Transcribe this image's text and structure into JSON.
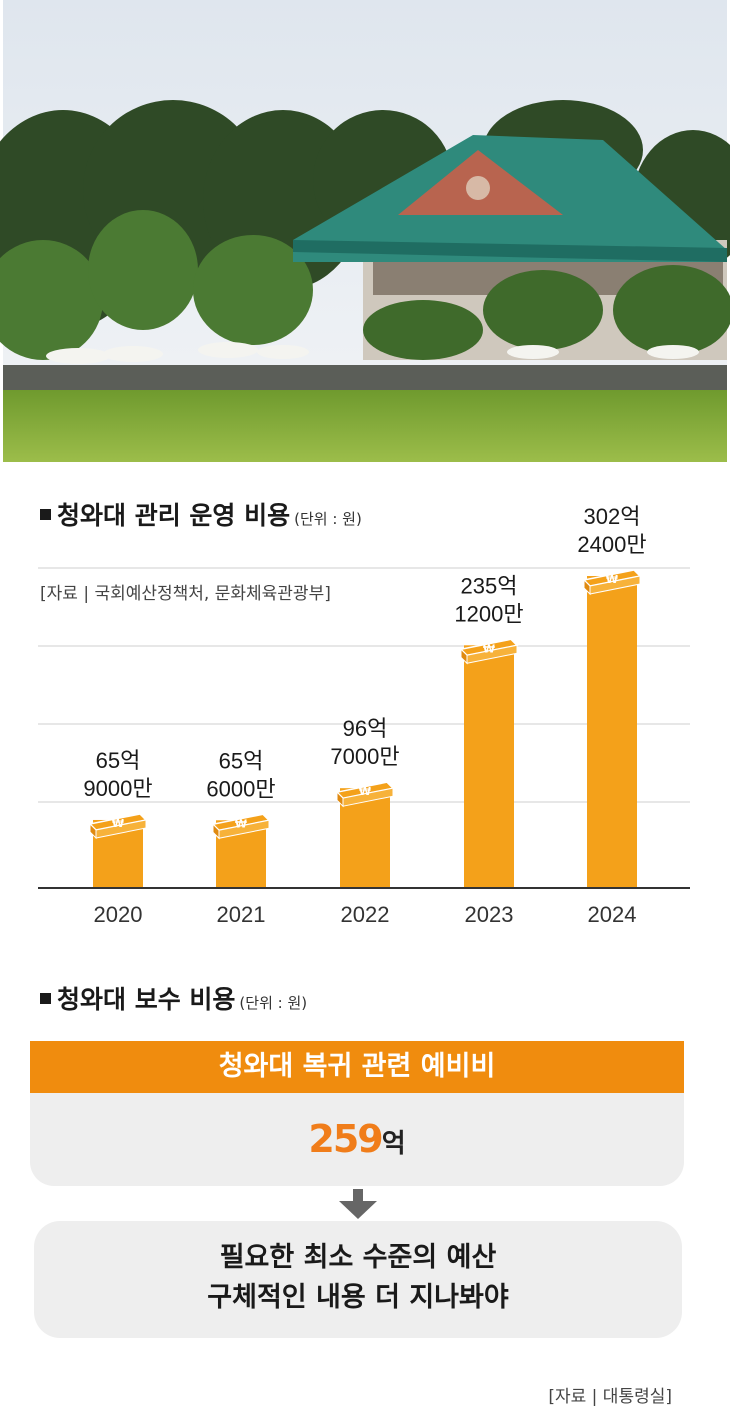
{
  "photo": {
    "description_icon": "blue-house-photo"
  },
  "chart1": {
    "title": "청와대 관리 운영 비용",
    "unit": "(단위 : 원)",
    "source": "[자료 | 국회예산정책처, 문화체육관광부]"
  },
  "chart_data": {
    "type": "bar",
    "title": "청와대 관리 운영 비용",
    "categories": [
      "2020",
      "2021",
      "2022",
      "2023",
      "2024"
    ],
    "values": [
      6590000000,
      6560000000,
      9670000000,
      23512000000,
      30224000000
    ],
    "value_labels": [
      [
        "65억",
        "9000만"
      ],
      [
        "65억",
        "6000만"
      ],
      [
        "96억",
        "7000만"
      ],
      [
        "235억",
        "1200만"
      ],
      [
        "302억",
        "2400만"
      ]
    ],
    "ylim": [
      0,
      31000000000
    ],
    "grid": true,
    "bar_color": "#f4a11a"
  },
  "chart2": {
    "title": "청와대 보수 비용",
    "unit": "(단위 : 원)",
    "banner": "청와대 복귀 관련 예비비",
    "amount_value": "259",
    "amount_unit": "억",
    "note_line1": "필요한 최소 수준의 예산",
    "note_line2": "구체적인 내용 더 지나봐야",
    "source": "[자료 | 대통령실]"
  },
  "colors": {
    "accent": "#f08c0e",
    "amount": "#f07d1a",
    "box": "#eeeeee"
  }
}
